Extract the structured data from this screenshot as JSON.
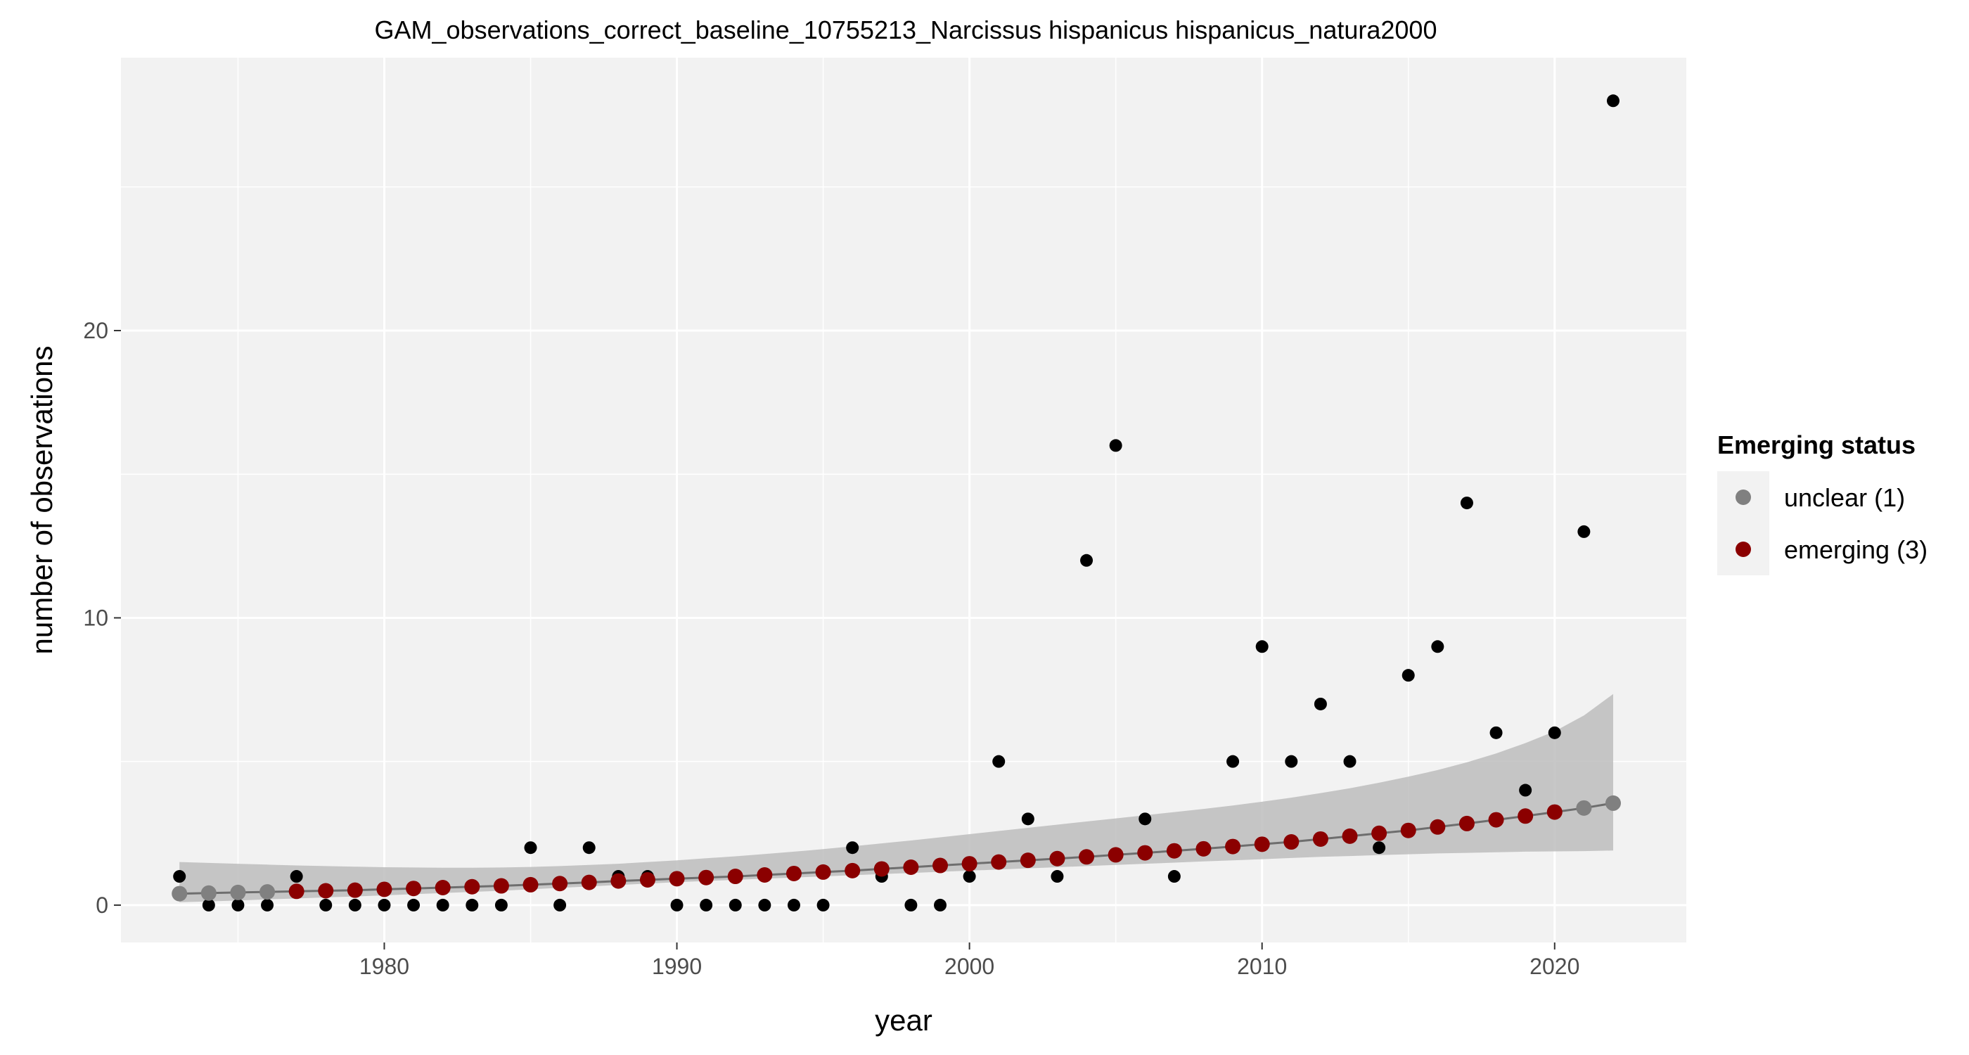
{
  "chart_data": {
    "type": "scatter",
    "title": "GAM_observations_correct_baseline_10755213_Narcissus hispanicus hispanicus_natura2000",
    "xlabel": "year",
    "ylabel": "number of observations",
    "xlim": [
      1971,
      2024.5
    ],
    "ylim": [
      -1.3,
      29.5
    ],
    "x_ticks": [
      1980,
      1990,
      2000,
      2010,
      2020
    ],
    "y_ticks": [
      0,
      10,
      20
    ],
    "grid": true,
    "legend": {
      "title": "Emerging status",
      "position": "right",
      "entries": [
        {
          "label": "unclear (1)",
          "color": "#808080"
        },
        {
          "label": "emerging (3)",
          "color": "#8b0000"
        }
      ]
    },
    "colors": {
      "panel": "#f2f2f2",
      "grid": "#ffffff",
      "observed": "#000000",
      "unclear": "#808080",
      "emerging": "#8b0000",
      "ribbon": "#bdbdbd",
      "fit_line": "#6e6e6e"
    },
    "observed": {
      "x": [
        1973,
        1974,
        1975,
        1976,
        1977,
        1978,
        1979,
        1980,
        1981,
        1982,
        1983,
        1984,
        1985,
        1986,
        1987,
        1988,
        1989,
        1990,
        1991,
        1992,
        1993,
        1994,
        1995,
        1996,
        1997,
        1998,
        1999,
        2000,
        2001,
        2002,
        2003,
        2004,
        2005,
        2006,
        2007,
        2008,
        2009,
        2010,
        2011,
        2012,
        2013,
        2014,
        2015,
        2016,
        2017,
        2018,
        2019,
        2020,
        2021,
        2022
      ],
      "y": [
        1,
        0,
        0,
        0,
        1,
        0,
        0,
        0,
        0,
        0,
        0,
        0,
        2,
        0,
        2,
        1,
        1,
        0,
        0,
        0,
        0,
        0,
        0,
        2,
        1,
        0,
        0,
        1,
        5,
        3,
        1,
        12,
        16,
        3,
        1,
        2,
        5,
        9,
        5,
        7,
        5,
        2,
        8,
        9,
        14,
        6,
        4,
        6,
        13,
        28
      ]
    },
    "fitted": {
      "x": [
        1973,
        1974,
        1975,
        1976,
        1977,
        1978,
        1979,
        1980,
        1981,
        1982,
        1983,
        1984,
        1985,
        1986,
        1987,
        1988,
        1989,
        1990,
        1991,
        1992,
        1993,
        1994,
        1995,
        1996,
        1997,
        1998,
        1999,
        2000,
        2001,
        2002,
        2003,
        2004,
        2005,
        2006,
        2007,
        2008,
        2009,
        2010,
        2011,
        2012,
        2013,
        2014,
        2015,
        2016,
        2017,
        2018,
        2019,
        2020,
        2021,
        2022
      ],
      "y": [
        0.4,
        0.42,
        0.44,
        0.46,
        0.48,
        0.5,
        0.52,
        0.55,
        0.58,
        0.61,
        0.64,
        0.67,
        0.71,
        0.75,
        0.79,
        0.84,
        0.88,
        0.92,
        0.96,
        1.0,
        1.05,
        1.1,
        1.15,
        1.2,
        1.26,
        1.32,
        1.38,
        1.44,
        1.5,
        1.56,
        1.62,
        1.68,
        1.75,
        1.82,
        1.89,
        1.96,
        2.04,
        2.12,
        2.2,
        2.3,
        2.4,
        2.5,
        2.6,
        2.72,
        2.84,
        2.97,
        3.1,
        3.24,
        3.38,
        3.55
      ],
      "status": [
        "unclear",
        "unclear",
        "unclear",
        "unclear",
        "emerging",
        "emerging",
        "emerging",
        "emerging",
        "emerging",
        "emerging",
        "emerging",
        "emerging",
        "emerging",
        "emerging",
        "emerging",
        "emerging",
        "emerging",
        "emerging",
        "emerging",
        "emerging",
        "emerging",
        "emerging",
        "emerging",
        "emerging",
        "emerging",
        "emerging",
        "emerging",
        "emerging",
        "emerging",
        "emerging",
        "emerging",
        "emerging",
        "emerging",
        "emerging",
        "emerging",
        "emerging",
        "emerging",
        "emerging",
        "emerging",
        "emerging",
        "emerging",
        "emerging",
        "emerging",
        "emerging",
        "emerging",
        "emerging",
        "emerging",
        "emerging",
        "unclear",
        "unclear"
      ],
      "ci_lower": [
        0.1,
        0.13,
        0.16,
        0.2,
        0.23,
        0.27,
        0.3,
        0.34,
        0.38,
        0.42,
        0.46,
        0.5,
        0.55,
        0.6,
        0.65,
        0.7,
        0.75,
        0.8,
        0.84,
        0.88,
        0.92,
        0.96,
        1.0,
        1.04,
        1.08,
        1.12,
        1.16,
        1.2,
        1.24,
        1.28,
        1.32,
        1.36,
        1.4,
        1.44,
        1.48,
        1.52,
        1.56,
        1.6,
        1.64,
        1.68,
        1.71,
        1.74,
        1.77,
        1.8,
        1.82,
        1.84,
        1.86,
        1.87,
        1.88,
        1.9
      ],
      "ci_upper": [
        1.5,
        1.47,
        1.44,
        1.41,
        1.38,
        1.36,
        1.34,
        1.32,
        1.31,
        1.3,
        1.3,
        1.31,
        1.33,
        1.36,
        1.4,
        1.44,
        1.5,
        1.56,
        1.63,
        1.7,
        1.78,
        1.86,
        1.95,
        2.05,
        2.15,
        2.25,
        2.36,
        2.47,
        2.58,
        2.69,
        2.8,
        2.91,
        3.02,
        3.13,
        3.24,
        3.35,
        3.47,
        3.6,
        3.74,
        3.9,
        4.07,
        4.26,
        4.47,
        4.7,
        4.97,
        5.28,
        5.64,
        6.05,
        6.6,
        7.35
      ]
    }
  }
}
